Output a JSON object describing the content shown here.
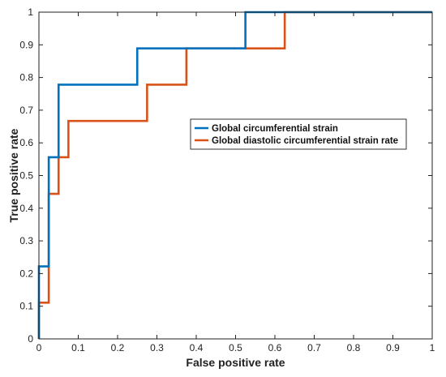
{
  "chart_data": {
    "type": "line",
    "title": "",
    "xlabel": "False positive rate",
    "ylabel": "True positive rate",
    "xlim": [
      0,
      1
    ],
    "ylim": [
      0,
      1
    ],
    "xticks": [
      0,
      0.1,
      0.2,
      0.3,
      0.4,
      0.5,
      0.6,
      0.7,
      0.8,
      0.9,
      1
    ],
    "yticks": [
      0,
      0.1,
      0.2,
      0.3,
      0.4,
      0.5,
      0.6,
      0.7,
      0.8,
      0.9,
      1
    ],
    "xtick_labels": [
      "0",
      "0.1",
      "0.2",
      "0.3",
      "0.4",
      "0.5",
      "0.6",
      "0.7",
      "0.8",
      "0.9",
      "1"
    ],
    "ytick_labels": [
      "0",
      "0.1",
      "0.2",
      "0.3",
      "0.4",
      "0.5",
      "0.6",
      "0.7",
      "0.8",
      "0.9",
      "1"
    ],
    "grid": false,
    "legend_position": "center-right",
    "series": [
      {
        "name": "Global circumferential strain",
        "color": "#0072BD",
        "x": [
          0,
          0,
          0.025,
          0.025,
          0.05,
          0.05,
          0.25,
          0.25,
          0.525,
          0.525,
          0.625,
          1
        ],
        "y": [
          0,
          0.222,
          0.222,
          0.556,
          0.556,
          0.778,
          0.778,
          0.889,
          0.889,
          1,
          1,
          1
        ]
      },
      {
        "name": "Global diastolic circumferential strain rate",
        "color": "#D95319",
        "x": [
          0,
          0,
          0.025,
          0.025,
          0.05,
          0.05,
          0.075,
          0.075,
          0.275,
          0.275,
          0.375,
          0.375,
          0.625,
          0.625,
          1
        ],
        "y": [
          0,
          0.111,
          0.111,
          0.444,
          0.444,
          0.556,
          0.556,
          0.667,
          0.667,
          0.778,
          0.778,
          0.889,
          0.889,
          1,
          1
        ]
      }
    ]
  }
}
